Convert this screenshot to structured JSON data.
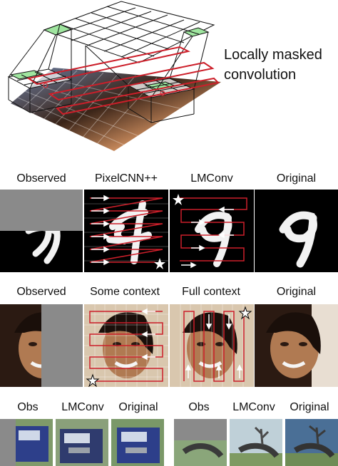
{
  "figure_title": [
    "Locally masked",
    "convolution"
  ],
  "row1": {
    "labels": [
      "Observed",
      "PixelCNN++",
      "LMConv",
      "Original"
    ]
  },
  "row2": {
    "labels": [
      "Observed",
      "Some context",
      "Full context",
      "Original"
    ]
  },
  "row3": {
    "labels": [
      "Obs",
      "LMConv",
      "Original",
      "Obs",
      "LMConv",
      "Original"
    ]
  },
  "icons": [
    "star-icon",
    "arrow-right-icon",
    "arrow-left-icon",
    "arrow-up-icon",
    "arrow-down-icon"
  ],
  "colors": {
    "mask_active": "#9fe59f",
    "ordering_path": "#cc1f2a",
    "digit": "#f2f2f2",
    "skin": "#b07a52"
  }
}
